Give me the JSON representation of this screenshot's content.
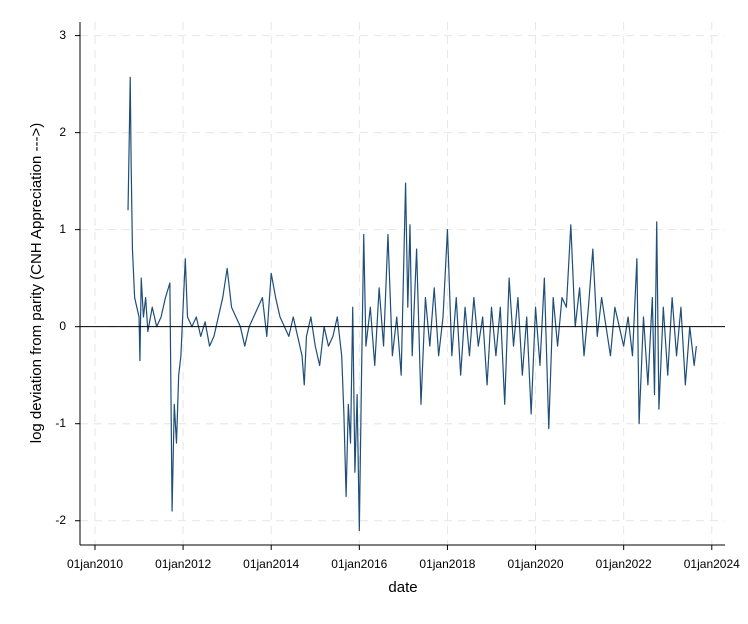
{
  "chart_data": {
    "type": "line",
    "x": [
      2010.75,
      2010.78,
      2010.8,
      2010.82,
      2010.85,
      2010.9,
      2010.95,
      2011.0,
      2011.02,
      2011.05,
      2011.1,
      2011.15,
      2011.2,
      2011.3,
      2011.4,
      2011.5,
      2011.6,
      2011.7,
      2011.75,
      2011.8,
      2011.85,
      2011.9,
      2011.95,
      2012.0,
      2012.05,
      2012.1,
      2012.2,
      2012.3,
      2012.4,
      2012.5,
      2012.6,
      2012.7,
      2012.8,
      2012.9,
      2013.0,
      2013.1,
      2013.2,
      2013.3,
      2013.4,
      2013.5,
      2013.6,
      2013.7,
      2013.8,
      2013.9,
      2014.0,
      2014.1,
      2014.2,
      2014.3,
      2014.4,
      2014.5,
      2014.6,
      2014.7,
      2014.75,
      2014.8,
      2014.9,
      2015.0,
      2015.1,
      2015.2,
      2015.3,
      2015.4,
      2015.5,
      2015.6,
      2015.65,
      2015.7,
      2015.75,
      2015.8,
      2015.85,
      2015.9,
      2015.95,
      2016.0,
      2016.05,
      2016.1,
      2016.15,
      2016.25,
      2016.35,
      2016.45,
      2016.55,
      2016.65,
      2016.75,
      2016.85,
      2016.95,
      2017.05,
      2017.1,
      2017.15,
      2017.2,
      2017.3,
      2017.4,
      2017.5,
      2017.6,
      2017.7,
      2017.8,
      2017.9,
      2018.0,
      2018.1,
      2018.2,
      2018.3,
      2018.4,
      2018.5,
      2018.6,
      2018.7,
      2018.8,
      2018.9,
      2019.0,
      2019.1,
      2019.2,
      2019.3,
      2019.4,
      2019.5,
      2019.6,
      2019.7,
      2019.8,
      2019.9,
      2020.0,
      2020.1,
      2020.2,
      2020.3,
      2020.4,
      2020.5,
      2020.6,
      2020.7,
      2020.8,
      2020.9,
      2021.0,
      2021.1,
      2021.2,
      2021.3,
      2021.4,
      2021.5,
      2021.6,
      2021.7,
      2021.8,
      2021.9,
      2022.0,
      2022.1,
      2022.2,
      2022.3,
      2022.35,
      2022.45,
      2022.55,
      2022.65,
      2022.7,
      2022.75,
      2022.8,
      2022.9,
      2023.0,
      2023.1,
      2023.2,
      2023.3,
      2023.4,
      2023.5,
      2023.6,
      2023.65
    ],
    "series": [
      {
        "color": "#1f4e79",
        "values": [
          1.2,
          2.0,
          2.57,
          1.7,
          0.8,
          0.3,
          0.2,
          0.1,
          -0.35,
          0.5,
          0.1,
          0.3,
          -0.05,
          0.2,
          0.0,
          0.1,
          0.3,
          0.45,
          -1.9,
          -0.8,
          -1.2,
          -0.5,
          -0.3,
          0.2,
          0.7,
          0.1,
          0.0,
          0.1,
          -0.1,
          0.05,
          -0.2,
          -0.1,
          0.1,
          0.3,
          0.6,
          0.2,
          0.1,
          0.0,
          -0.2,
          0.0,
          0.1,
          0.2,
          0.3,
          -0.1,
          0.55,
          0.3,
          0.1,
          0.0,
          -0.1,
          0.1,
          -0.1,
          -0.3,
          -0.6,
          -0.1,
          0.1,
          -0.2,
          -0.4,
          0.0,
          -0.2,
          -0.1,
          0.1,
          -0.3,
          -0.9,
          -1.75,
          -0.8,
          -1.2,
          0.2,
          -1.5,
          -0.7,
          -2.1,
          -0.5,
          0.95,
          -0.2,
          0.2,
          -0.4,
          0.4,
          -0.2,
          0.95,
          -0.3,
          0.1,
          -0.5,
          1.48,
          0.2,
          1.05,
          -0.3,
          0.8,
          -0.8,
          0.3,
          -0.2,
          0.4,
          -0.3,
          0.1,
          1.0,
          -0.3,
          0.3,
          -0.5,
          0.2,
          -0.3,
          0.3,
          -0.2,
          0.1,
          -0.6,
          0.2,
          -0.3,
          0.2,
          -0.8,
          0.5,
          -0.2,
          0.3,
          -0.5,
          0.1,
          -0.9,
          0.2,
          -0.4,
          0.5,
          -1.05,
          0.3,
          -0.2,
          0.3,
          0.2,
          1.05,
          0.0,
          0.4,
          -0.3,
          0.2,
          0.8,
          -0.1,
          0.3,
          0.0,
          -0.3,
          0.2,
          0.0,
          -0.2,
          0.1,
          -0.3,
          0.7,
          -1.0,
          0.1,
          -0.6,
          0.3,
          -0.7,
          1.08,
          -0.85,
          0.2,
          -0.5,
          0.3,
          -0.3,
          0.2,
          -0.6,
          0.0,
          -0.4,
          -0.2
        ]
      }
    ],
    "x_label": "date",
    "y_label": "log deviation from parity (CNH Appreciation --->)",
    "xlim": [
      2009.66,
      2024.3
    ],
    "ylim": [
      -2.25,
      3.14
    ],
    "xticks": [
      {
        "value": 2010,
        "label": "01jan2010"
      },
      {
        "value": 2012,
        "label": "01jan2012"
      },
      {
        "value": 2014,
        "label": "01jan2014"
      },
      {
        "value": 2016,
        "label": "01jan2016"
      },
      {
        "value": 2018,
        "label": "01jan2018"
      },
      {
        "value": 2020,
        "label": "01jan2020"
      },
      {
        "value": 2022,
        "label": "01jan2022"
      },
      {
        "value": 2024,
        "label": "01jan2024"
      }
    ],
    "yticks": [
      -2,
      -1,
      0,
      1,
      2,
      3
    ],
    "grid": true
  }
}
